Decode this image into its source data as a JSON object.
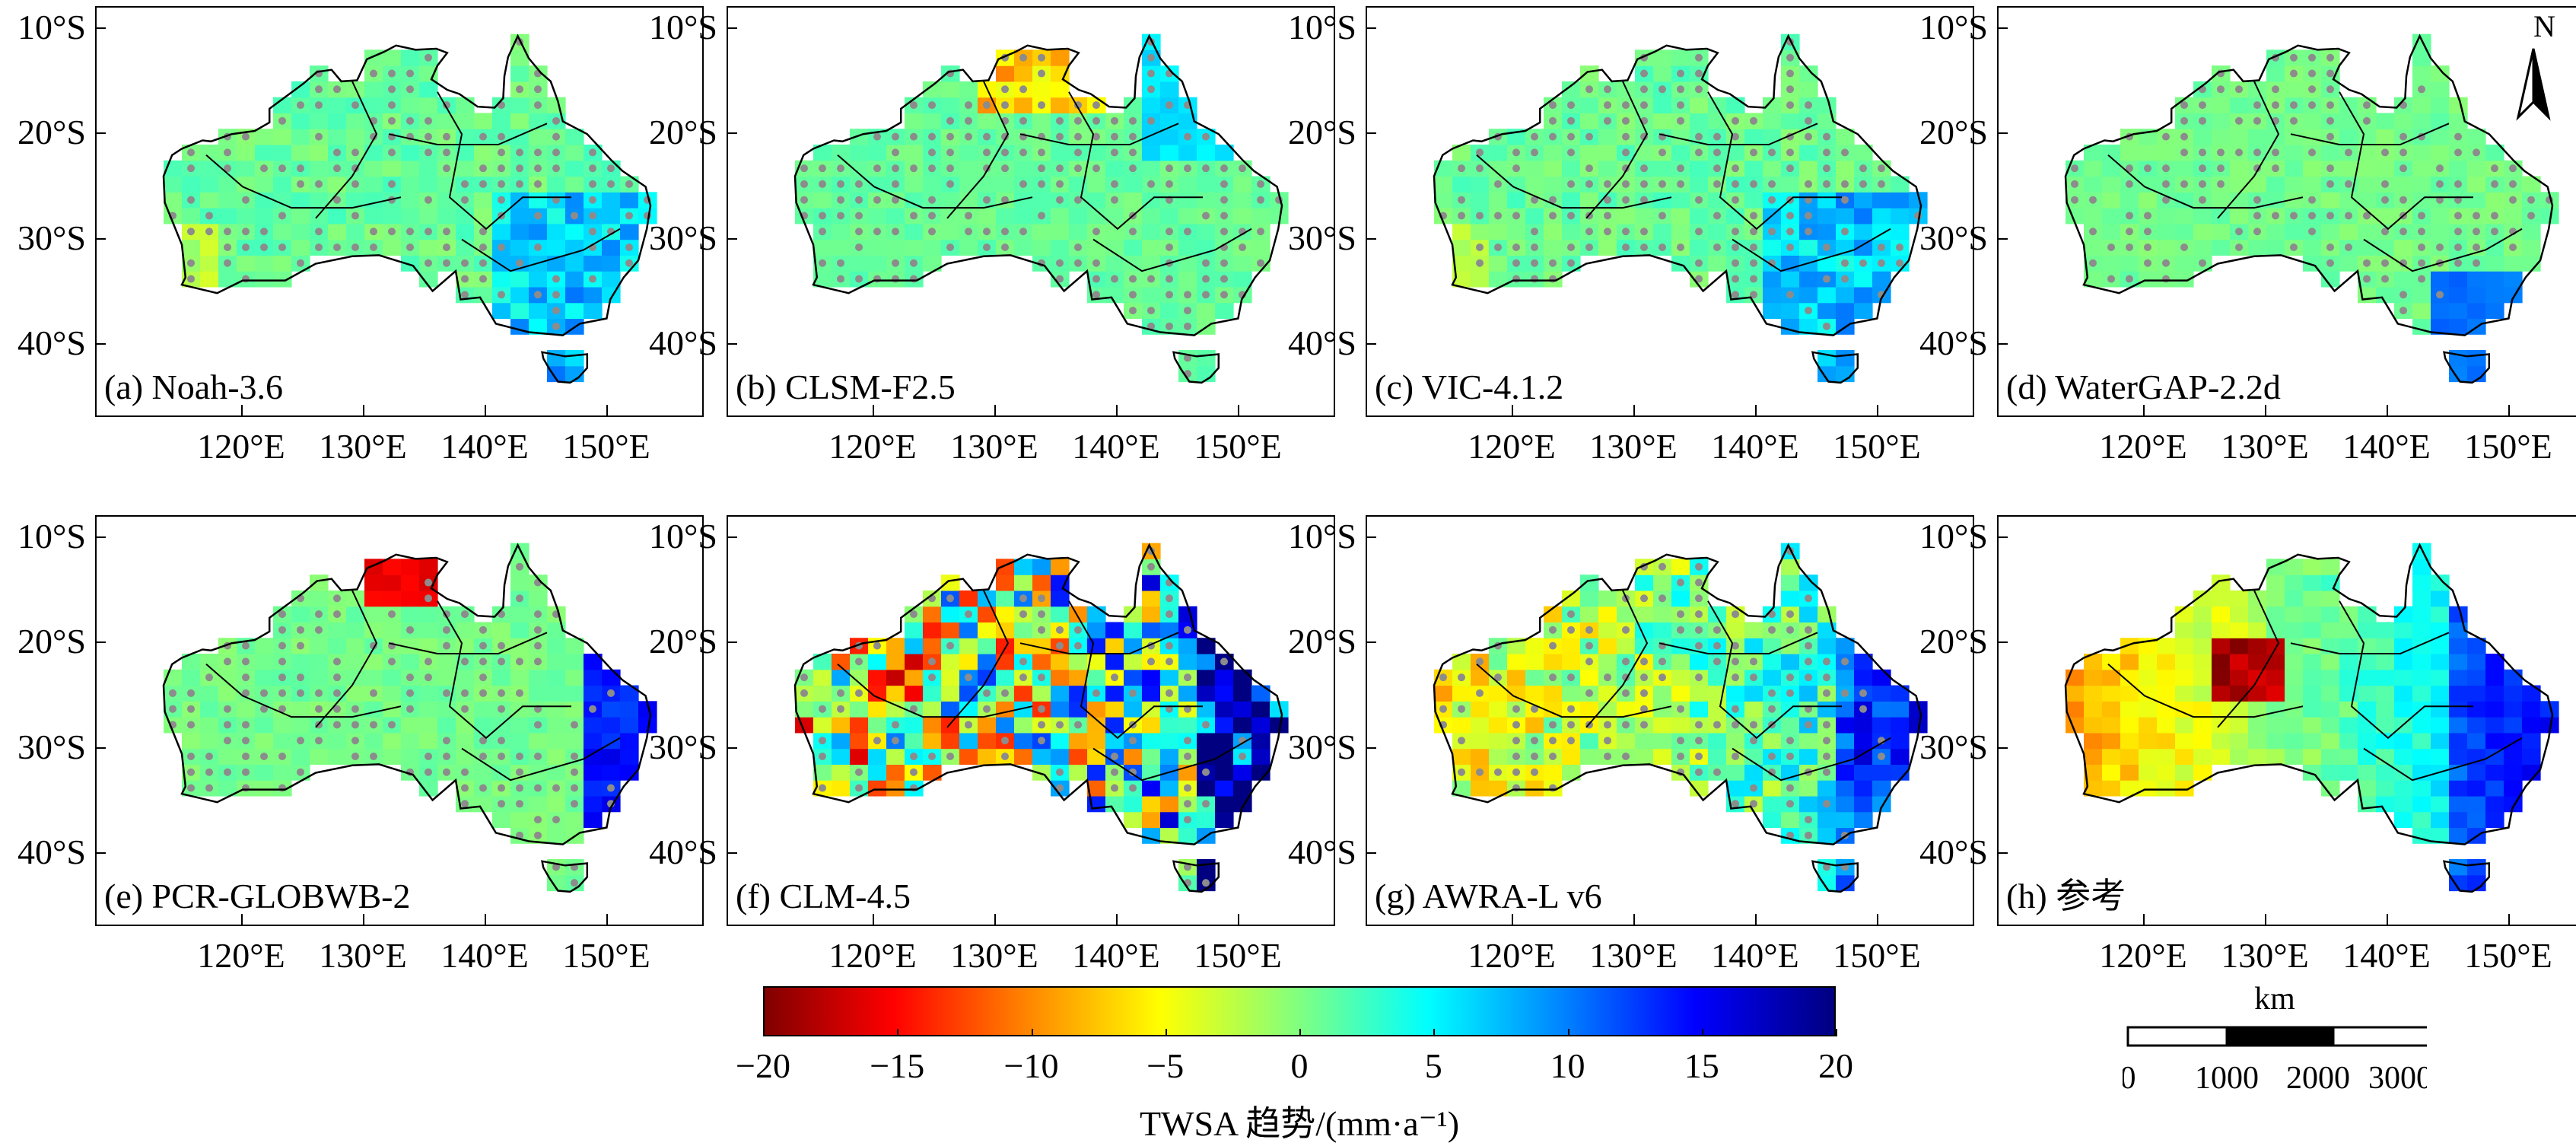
{
  "figure": {
    "lat_labels": [
      "10°S",
      "20°S",
      "30°S",
      "40°S"
    ],
    "lon_labels": [
      "120°E",
      "130°E",
      "140°E",
      "150°E"
    ],
    "panels": [
      {
        "label": "(a) Noah-3.6",
        "trend_style": "mild-east-positive"
      },
      {
        "label": "(b) CLSM-F2.5",
        "trend_style": "mild-north-negative"
      },
      {
        "label": "(c) VIC-4.1.2",
        "trend_style": "mild-east-positive"
      },
      {
        "label": "(d) WaterGAP-2.2d",
        "trend_style": "near-zero"
      },
      {
        "label": "(e) PCR-GLOBWB-2",
        "trend_style": "east-coast-positive"
      },
      {
        "label": "(f) CLM-4.5",
        "trend_style": "strong-mixed"
      },
      {
        "label": "(g) AWRA-L v6",
        "trend_style": "east-positive-west-negative"
      },
      {
        "label": "(h) 参考",
        "trend_style": "reference"
      }
    ],
    "colorbar": {
      "ticks": [
        "−20",
        "−15",
        "−10",
        "−5",
        "0",
        "5",
        "10",
        "15",
        "20"
      ],
      "title": "TWSA 趋势/(mm·a⁻¹)",
      "colors": [
        "#800000",
        "#ff0000",
        "#ff8000",
        "#ffff00",
        "#80ff80",
        "#00ffff",
        "#0080ff",
        "#0000ff",
        "#000080"
      ]
    },
    "north_arrow": {
      "label": "N"
    },
    "scale_bar": {
      "unit": "km",
      "ticks": [
        "0",
        "1000",
        "2000",
        "3000"
      ]
    }
  }
}
